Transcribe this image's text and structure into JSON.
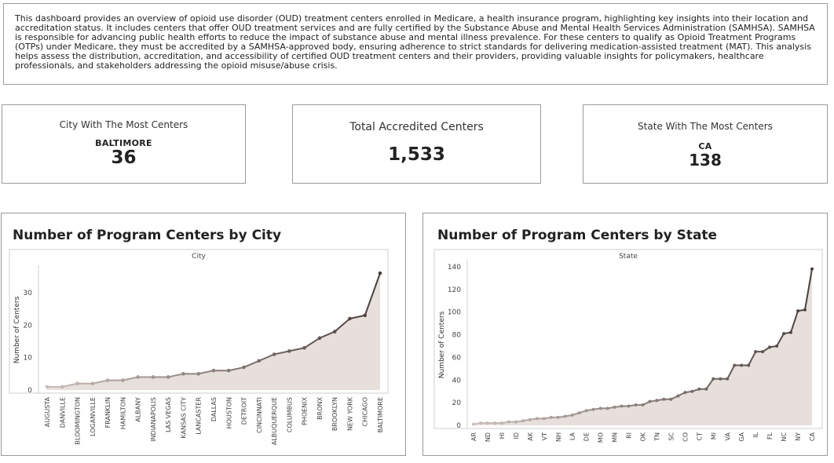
{
  "description": "This dashboard provides an overview of opioid use disorder (OUD) treatment centers enrolled in Medicare, a health insurance program, highlighting key insights into their location and accreditation status. It includes centers that offer OUD treatment services and are fully certified by the Substance Abuse and Mental Health Services Administration (SAMHSA). SAMHSA is responsible for advancing public health efforts to reduce the impact of substance abuse and mental illness prevalence. For these centers to qualify as Opioid Treatment Programs (OTPs) under Medicare, they must be accredited by a SAMHSA-approved body, ensuring adherence to strict standards for delivering medication-assisted treatment (MAT). This analysis helps assess the distribution, accreditation, and accessibility of certified OUD treatment centers and their providers, providing valuable insights for policymakers, healthcare professionals, and stakeholders addressing the opioid misuse/abuse crisis.",
  "kpis": {
    "city": {
      "label": "City With The Most Centers",
      "name": "BALTIMORE",
      "value": "36"
    },
    "total": {
      "label": "Total Accredited Centers",
      "value": "1,533"
    },
    "state": {
      "label": "State With The Most Centers",
      "name": "CA",
      "value": "138"
    }
  },
  "colors": {
    "line_dark": "#4a3f3c",
    "line_light": "#c9bdb8",
    "area": "#e6dfdb",
    "axis": "#cfcfcf",
    "border": "#9a9a9a"
  },
  "chart_data": [
    {
      "type": "area",
      "title": "Number of Program Centers by City",
      "xlabel": "City",
      "ylabel": "Number of Centers",
      "categories": [
        "AUGUSTA",
        "DANVILLE",
        "BLOOMINGTON",
        "LOGANVILLE",
        "FRANKLIN",
        "HAMILTON",
        "ALBANY",
        "INDIANAPOLIS",
        "LAS VEGAS",
        "KANSAS CITY",
        "LANCASTER",
        "DALLAS",
        "HOUSTON",
        "DETROIT",
        "CINCINNATI",
        "ALBUQUERQUE",
        "COLUMBUS",
        "PHOENIX",
        "BRONX",
        "BROOKLYN",
        "NEW YORK",
        "CHICAGO",
        "BALTIMORE"
      ],
      "values": [
        1,
        1,
        2,
        2,
        3,
        3,
        4,
        4,
        4,
        5,
        5,
        6,
        6,
        7,
        9,
        11,
        12,
        13,
        16,
        18,
        22,
        23,
        36
      ],
      "ylim": [
        0,
        37
      ],
      "yticks": [
        0,
        10,
        20,
        30
      ],
      "grid": false
    },
    {
      "type": "area",
      "title": "Number of Program Centers by State",
      "xlabel": "State",
      "ylabel": "Number of Centers",
      "categories": [
        "AR",
        "",
        "ND",
        "",
        "HI",
        "",
        "ID",
        "",
        "AK",
        "",
        "VT",
        "",
        "NH",
        "",
        "LA",
        "",
        "DE",
        "",
        "MO",
        "",
        "MN",
        "",
        "RI",
        "",
        "OK",
        "",
        "TN",
        "",
        "SC",
        "",
        "CO",
        "",
        "CT",
        "",
        "MI",
        "",
        "VA",
        "",
        "GA",
        "",
        "IL",
        "",
        "FL",
        "",
        "NC",
        "",
        "NY",
        "",
        "CA"
      ],
      "values": [
        1,
        2,
        2,
        2,
        2,
        3,
        3,
        4,
        5,
        6,
        6,
        7,
        7,
        8,
        9,
        11,
        13,
        14,
        15,
        15,
        16,
        17,
        17,
        18,
        18,
        21,
        22,
        23,
        23,
        26,
        29,
        30,
        32,
        32,
        41,
        41,
        41,
        53,
        53,
        53,
        65,
        65,
        69,
        70,
        81,
        82,
        101,
        102,
        138
      ],
      "ylim": [
        0,
        142
      ],
      "yticks": [
        0,
        20,
        40,
        60,
        80,
        100,
        120,
        140
      ],
      "grid": false
    }
  ]
}
